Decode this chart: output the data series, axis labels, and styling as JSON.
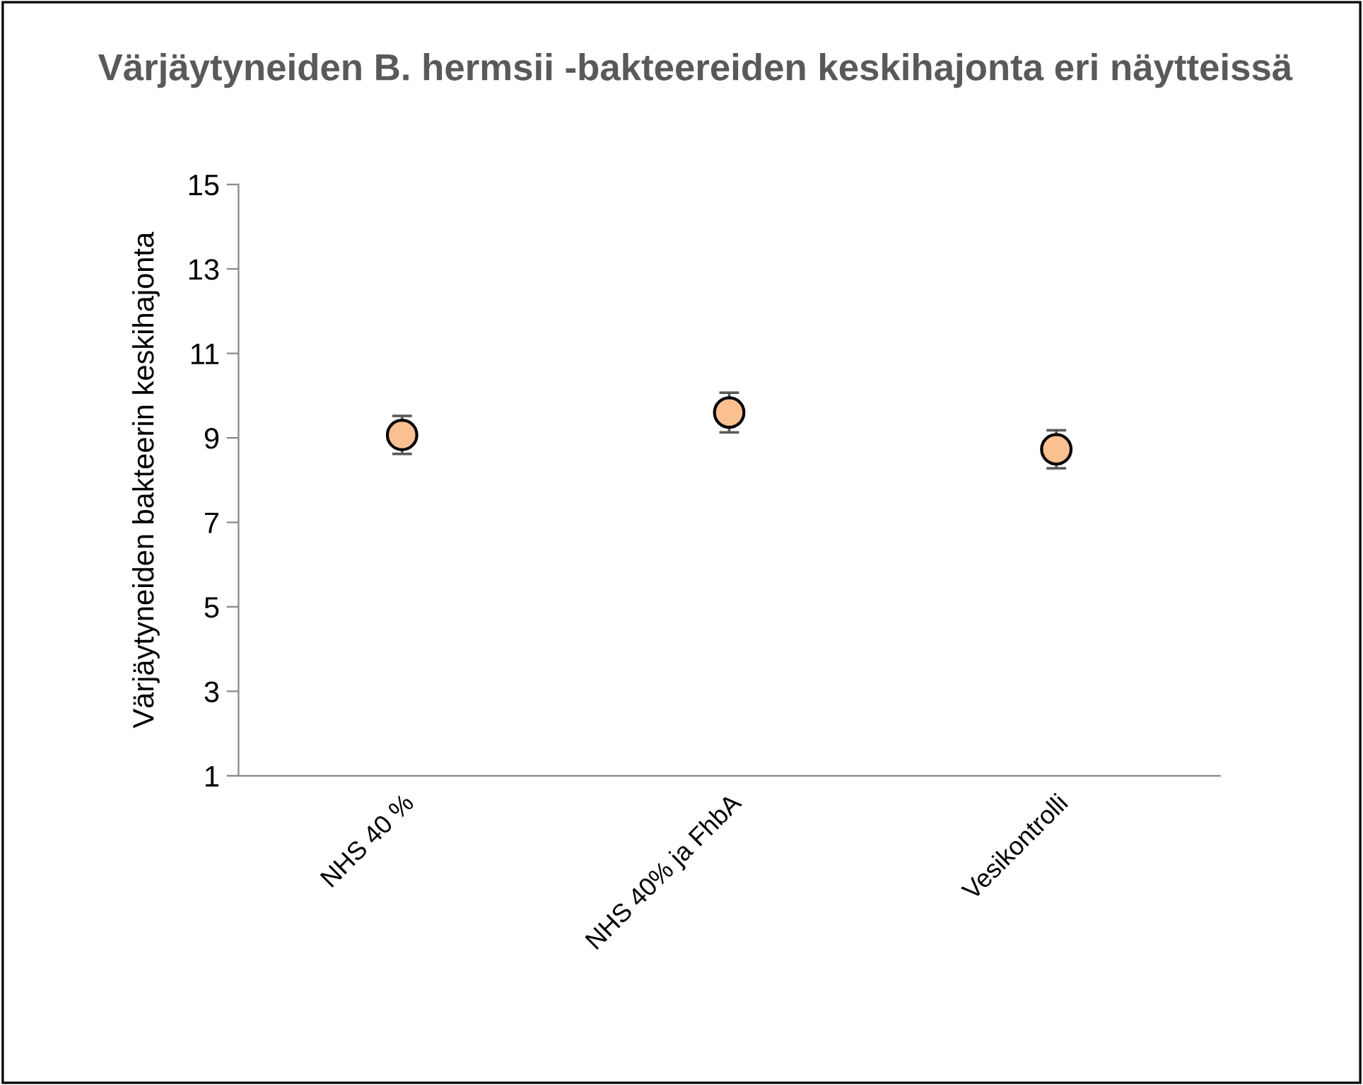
{
  "chart_data": {
    "type": "scatter",
    "title": "Värjäytyneiden B. hermsii -bakteereiden keskihajonta eri näytteissä",
    "ylabel": "Värjäytyneiden bakteerin keskihajonta",
    "categories": [
      "NHS 40 %",
      "NHS 40% ja FhbA",
      "Vesikontrolli"
    ],
    "series": [
      {
        "color": "#fac090",
        "values": [
          9.07,
          9.6,
          8.73
        ],
        "errors": [
          0.45,
          0.47,
          0.45
        ]
      }
    ],
    "ylim": [
      1,
      15
    ],
    "yticks": [
      1,
      3,
      5,
      7,
      9,
      11,
      13,
      15
    ],
    "grid": false,
    "legend": false,
    "marker": "circle"
  }
}
